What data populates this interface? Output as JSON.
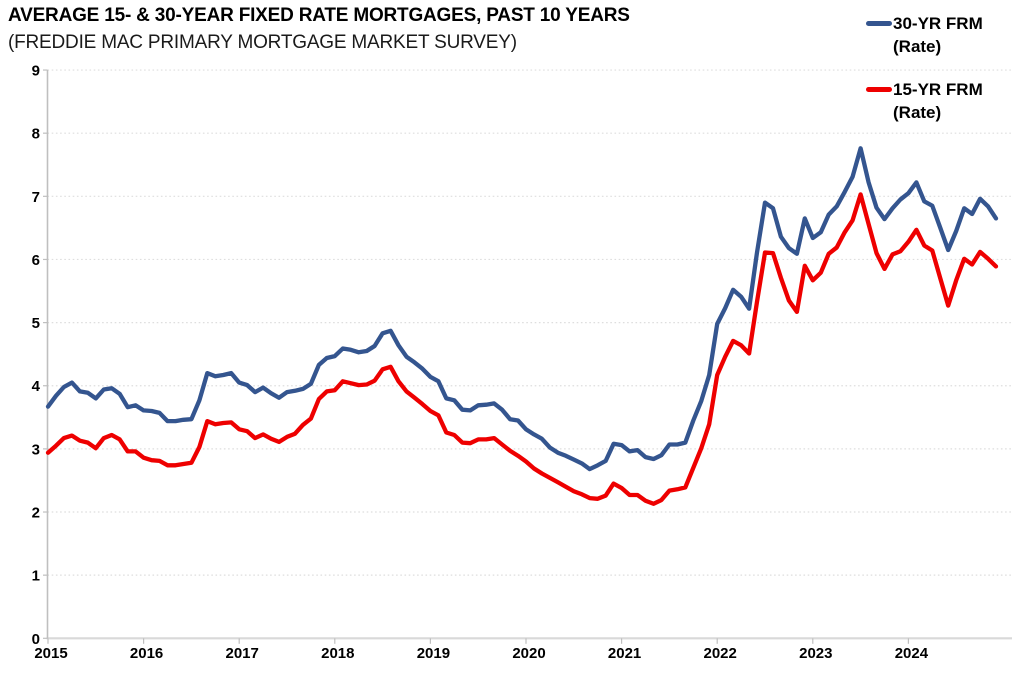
{
  "header": {
    "title": "AVERAGE 15- & 30-YEAR FIXED RATE MORTGAGES, PAST 10 YEARS",
    "subtitle": "(FREDDIE MAC PRIMARY MORTGAGE MARKET SURVEY)"
  },
  "legend": [
    {
      "line1": "30-YR FRM",
      "line2": "(Rate)",
      "color": "#34558F"
    },
    {
      "line1": "15-YR FRM",
      "line2": "(Rate)",
      "color": "#EE0000"
    }
  ],
  "chart_data": {
    "type": "line",
    "title": "AVERAGE 15- & 30-YEAR FIXED RATE MORTGAGES, PAST 10 YEARS",
    "subtitle": "(FREDDIE MAC PRIMARY MORTGAGE MARKET SURVEY)",
    "frequency": "monthly",
    "x_start": "2015-04",
    "x_end": "2025-03",
    "x_tick_labels": [
      "2015",
      "2016",
      "2017",
      "2018",
      "2019",
      "2020",
      "2021",
      "2022",
      "2023",
      "2024"
    ],
    "y_ticks": [
      0,
      1,
      2,
      3,
      4,
      5,
      6,
      7,
      8,
      9
    ],
    "ylim": [
      0,
      9
    ],
    "grid": "horizontal-dotted",
    "legend_position": "top-right",
    "series": [
      {
        "id": "30yr-frm",
        "name": "30-YR FRM (Rate)",
        "color": "#34558F",
        "values": [
          3.67,
          3.84,
          3.98,
          4.05,
          3.91,
          3.89,
          3.8,
          3.94,
          3.96,
          3.87,
          3.66,
          3.69,
          3.61,
          3.6,
          3.57,
          3.44,
          3.44,
          3.46,
          3.47,
          3.77,
          4.2,
          4.15,
          4.17,
          4.2,
          4.05,
          4.01,
          3.9,
          3.97,
          3.88,
          3.81,
          3.9,
          3.92,
          3.95,
          4.03,
          4.33,
          4.44,
          4.47,
          4.59,
          4.57,
          4.53,
          4.55,
          4.63,
          4.83,
          4.87,
          4.64,
          4.46,
          4.37,
          4.27,
          4.14,
          4.07,
          3.8,
          3.77,
          3.62,
          3.61,
          3.69,
          3.7,
          3.72,
          3.62,
          3.47,
          3.45,
          3.31,
          3.23,
          3.16,
          3.02,
          2.94,
          2.89,
          2.83,
          2.77,
          2.68,
          2.74,
          2.81,
          3.08,
          3.06,
          2.96,
          2.98,
          2.87,
          2.84,
          2.9,
          3.07,
          3.07,
          3.1,
          3.45,
          3.76,
          4.17,
          4.98,
          5.23,
          5.52,
          5.41,
          5.22,
          6.11,
          6.9,
          6.81,
          6.36,
          6.18,
          6.09,
          6.65,
          6.34,
          6.43,
          6.71,
          6.84,
          7.07,
          7.31,
          7.76,
          7.22,
          6.82,
          6.64,
          6.81,
          6.95,
          7.05,
          7.22,
          6.92,
          6.85,
          6.5,
          6.15,
          6.45,
          6.81,
          6.72,
          6.96,
          6.84,
          6.65
        ]
      },
      {
        "id": "15yr-frm",
        "name": "15-YR FRM (Rate)",
        "color": "#EE0000",
        "values": [
          2.94,
          3.05,
          3.17,
          3.21,
          3.13,
          3.1,
          3.01,
          3.17,
          3.22,
          3.15,
          2.96,
          2.96,
          2.86,
          2.82,
          2.81,
          2.74,
          2.74,
          2.76,
          2.78,
          3.03,
          3.44,
          3.39,
          3.41,
          3.42,
          3.31,
          3.28,
          3.17,
          3.23,
          3.16,
          3.11,
          3.19,
          3.24,
          3.38,
          3.48,
          3.79,
          3.91,
          3.93,
          4.07,
          4.04,
          4.01,
          4.02,
          4.08,
          4.26,
          4.3,
          4.07,
          3.91,
          3.81,
          3.71,
          3.6,
          3.53,
          3.26,
          3.22,
          3.1,
          3.09,
          3.15,
          3.15,
          3.17,
          3.07,
          2.97,
          2.89,
          2.8,
          2.69,
          2.61,
          2.54,
          2.47,
          2.4,
          2.33,
          2.28,
          2.22,
          2.21,
          2.26,
          2.45,
          2.38,
          2.27,
          2.27,
          2.18,
          2.13,
          2.19,
          2.34,
          2.36,
          2.39,
          2.7,
          3.01,
          3.39,
          4.17,
          4.46,
          4.71,
          4.64,
          4.51,
          5.33,
          6.11,
          6.1,
          5.71,
          5.35,
          5.17,
          5.9,
          5.67,
          5.79,
          6.09,
          6.19,
          6.43,
          6.62,
          7.03,
          6.56,
          6.1,
          5.85,
          6.08,
          6.13,
          6.28,
          6.47,
          6.22,
          6.14,
          5.7,
          5.27,
          5.67,
          6.01,
          5.92,
          6.12,
          6.01,
          5.89
        ]
      }
    ]
  }
}
